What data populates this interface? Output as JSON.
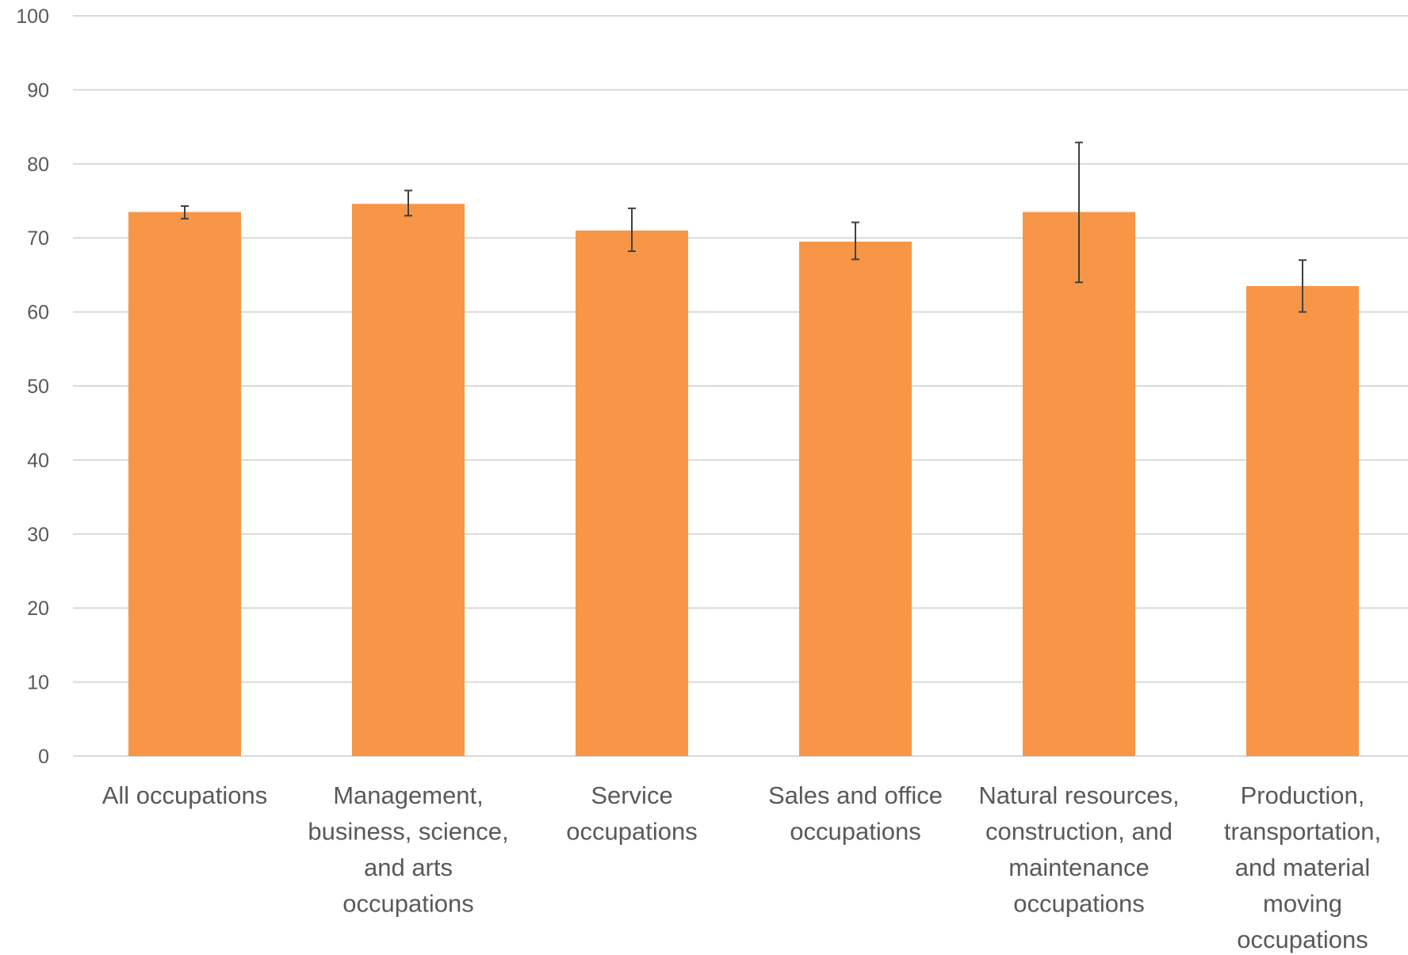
{
  "chart_data": {
    "type": "bar",
    "categories": [
      [
        "All occupations"
      ],
      [
        "Management,",
        "business, science,",
        "and arts",
        "occupations"
      ],
      [
        "Service",
        "occupations"
      ],
      [
        "Sales and office",
        "occupations"
      ],
      [
        "Natural resources,",
        "construction, and",
        "maintenance",
        "occupations"
      ],
      [
        "Production,",
        "transportation,",
        "and material",
        "moving",
        "occupations"
      ]
    ],
    "values": [
      73.5,
      74.6,
      71.0,
      69.5,
      73.5,
      63.5
    ],
    "error_low": [
      72.6,
      73.0,
      68.2,
      67.1,
      64.0,
      60.0
    ],
    "error_high": [
      74.3,
      76.4,
      74.0,
      72.1,
      82.9,
      67.0
    ],
    "ylim": [
      0,
      100
    ],
    "yticks": [
      0,
      10,
      20,
      30,
      40,
      50,
      60,
      70,
      80,
      90,
      100
    ],
    "grid": true,
    "colors": {
      "bar": "#F79646",
      "grid": "#D9D9D9",
      "error": "#404040",
      "text": "#595959"
    }
  }
}
